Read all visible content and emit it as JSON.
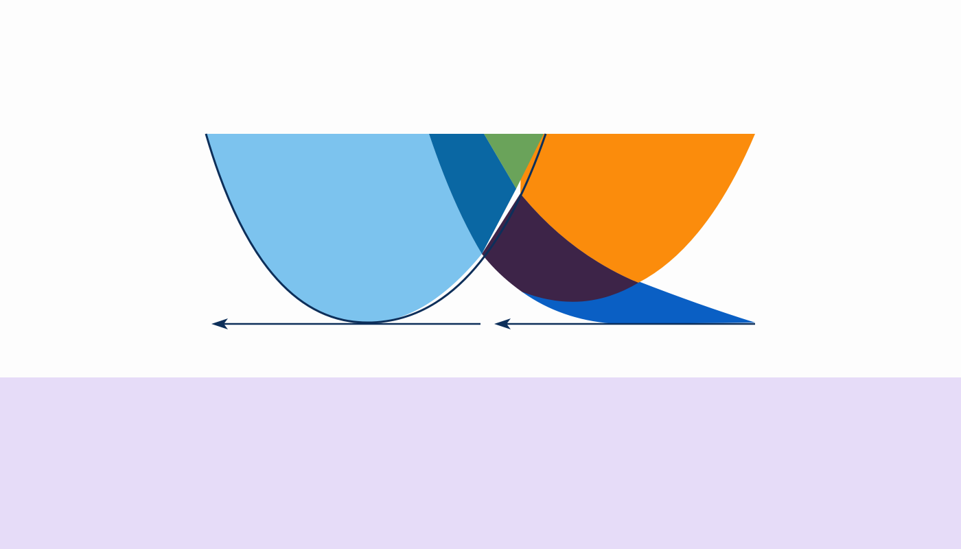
{
  "colors": {
    "background": "#fdfdfd",
    "light_blue": "#7cc3ee",
    "dark_blue": "#0a67a3",
    "green": "#6aa35a",
    "orange": "#fb8c0c",
    "purple": "#3d2448",
    "royal_blue": "#0a5fc4",
    "outline": "#0d2f5a",
    "lavender_band": "#e6dcf8"
  },
  "icons": [
    "arrow-left-icon",
    "arrow-left-icon"
  ]
}
